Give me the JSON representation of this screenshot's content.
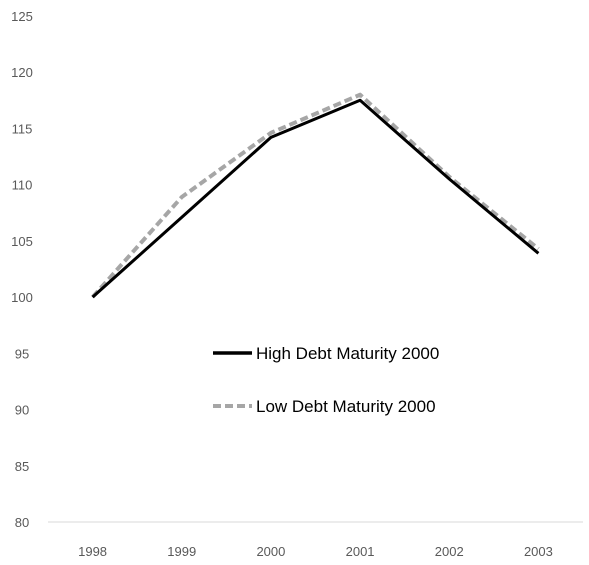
{
  "chart_data": {
    "type": "line",
    "title": "",
    "xlabel": "",
    "ylabel": "",
    "categories": [
      "1998",
      "1999",
      "2000",
      "2001",
      "2002",
      "2003"
    ],
    "ylim": [
      80,
      125
    ],
    "yticks": [
      80,
      85,
      90,
      95,
      100,
      105,
      110,
      115,
      120,
      125
    ],
    "yticklabels": [
      "80",
      "85",
      "90",
      "95",
      "100",
      "105",
      "110",
      "115",
      "120",
      "125"
    ],
    "grid": false,
    "legend_position": "center",
    "series": [
      {
        "name": "High Debt Maturity 2000",
        "values": [
          100.0,
          107.1,
          114.2,
          117.5,
          110.5,
          103.9
        ],
        "color": "#000000",
        "style": "solid"
      },
      {
        "name": "Low Debt Maturity 2000",
        "values": [
          100.0,
          108.9,
          114.6,
          118.0,
          110.7,
          104.3
        ],
        "color": "#a6a6a6",
        "style": "dashed"
      }
    ]
  }
}
